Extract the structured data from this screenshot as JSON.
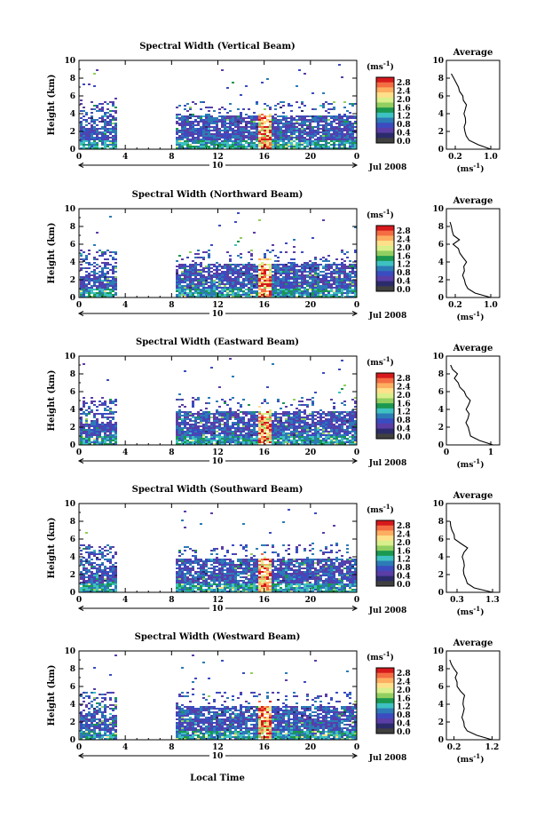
{
  "figure": {
    "x_axis_label": "Local Time",
    "y_axis_label": "Height (km)",
    "date_label": "Jul 2008",
    "day_label": "10",
    "unit_label": "(ms",
    "unit_exponent": "-1",
    "average_title": "Average",
    "average_unit": "(ms",
    "average_unit_exponent": "-1",
    "colorbar_ticks": [
      "2.8",
      "2.4",
      "2.0",
      "1.6",
      "1.2",
      "0.8",
      "0.4",
      "0.0"
    ],
    "colorbar_colors": [
      "#d7191c",
      "#f46d43",
      "#fdae61",
      "#fee08b",
      "#d9ef8b",
      "#91cf60",
      "#1a9850",
      "#3ec1c1",
      "#2c7bb6",
      "#3b4cc0",
      "#5a3ea6",
      "#2b2b6b",
      "#404040"
    ]
  },
  "chart_data": [
    {
      "type": "heatmap",
      "title": "Spectral Width (Vertical Beam)",
      "xlabel": "Local Time",
      "ylabel": "Height (km)",
      "x_ticks": [
        "0",
        "4",
        "8",
        "12",
        "16",
        "20",
        "0"
      ],
      "y_ticks": [
        "0",
        "2",
        "4",
        "6",
        "8",
        "10"
      ],
      "xlim": [
        0,
        24
      ],
      "ylim": [
        0,
        10
      ],
      "clim": [
        0,
        3.0
      ],
      "gap_hours": [
        3.2,
        8.2
      ],
      "average": {
        "title": "Average",
        "x_ticks": [
          "0.2",
          "1.0"
        ],
        "xlim": [
          0,
          1.2
        ],
        "heights": [
          0,
          0.5,
          1,
          1.5,
          2,
          2.5,
          3,
          3.5,
          4,
          4.5,
          5,
          5.5,
          6,
          6.5,
          7,
          7.5,
          8,
          8.5
        ],
        "values": [
          1.0,
          0.7,
          0.5,
          0.45,
          0.42,
          0.4,
          0.42,
          0.44,
          0.38,
          0.43,
          0.46,
          0.4,
          0.35,
          0.3,
          0.26,
          0.2,
          0.15,
          0.1
        ]
      }
    },
    {
      "type": "heatmap",
      "title": "Spectral Width (Northward Beam)",
      "xlabel": "Local Time",
      "ylabel": "Height (km)",
      "x_ticks": [
        "0",
        "4",
        "8",
        "12",
        "16",
        "20",
        "0"
      ],
      "y_ticks": [
        "0",
        "2",
        "4",
        "6",
        "8",
        "10"
      ],
      "xlim": [
        0,
        24
      ],
      "ylim": [
        0,
        10
      ],
      "clim": [
        0,
        3.0
      ],
      "gap_hours": [
        3.2,
        8.2
      ],
      "average": {
        "title": "Average",
        "x_ticks": [
          "0.2",
          "1.0"
        ],
        "xlim": [
          0,
          1.2
        ],
        "heights": [
          0,
          0.5,
          1,
          1.5,
          2,
          2.5,
          3,
          3.5,
          4,
          4.5,
          5,
          5.5,
          6,
          6.5,
          7,
          7.5,
          8,
          8.5
        ],
        "values": [
          1.0,
          0.65,
          0.48,
          0.45,
          0.42,
          0.38,
          0.42,
          0.4,
          0.45,
          0.36,
          0.3,
          0.26,
          0.15,
          0.28,
          0.18,
          0.14,
          0.1,
          0.1
        ]
      }
    },
    {
      "type": "heatmap",
      "title": "Spectral Width (Eastward Beam)",
      "xlabel": "Local Time",
      "ylabel": "Height (km)",
      "x_ticks": [
        "0",
        "4",
        "8",
        "12",
        "16",
        "20",
        "0"
      ],
      "y_ticks": [
        "0",
        "2",
        "4",
        "6",
        "8",
        "10"
      ],
      "xlim": [
        0,
        24
      ],
      "ylim": [
        0,
        10
      ],
      "clim": [
        0,
        3.0
      ],
      "gap_hours": [
        3.2,
        8.2
      ],
      "average": {
        "title": "Average",
        "x_ticks": [
          "0",
          "1"
        ],
        "xlim": [
          0,
          1.2
        ],
        "heights": [
          0,
          0.5,
          1,
          1.5,
          2,
          2.5,
          3,
          3.5,
          4,
          4.5,
          5,
          5.5,
          6,
          6.5,
          7,
          7.5,
          8,
          8.5,
          9
        ],
        "values": [
          1.05,
          0.75,
          0.55,
          0.5,
          0.48,
          0.45,
          0.47,
          0.5,
          0.45,
          0.5,
          0.52,
          0.45,
          0.4,
          0.3,
          0.28,
          0.2,
          0.25,
          0.15,
          0.1
        ]
      }
    },
    {
      "type": "heatmap",
      "title": "Spectral Width (Southward Beam)",
      "xlabel": "Local Time",
      "ylabel": "Height (km)",
      "x_ticks": [
        "0",
        "4",
        "8",
        "12",
        "16",
        "20",
        "0"
      ],
      "y_ticks": [
        "0",
        "2",
        "4",
        "6",
        "8",
        "10"
      ],
      "xlim": [
        0,
        24
      ],
      "ylim": [
        0,
        10
      ],
      "clim": [
        0,
        3.0
      ],
      "gap_hours": [
        3.2,
        8.2
      ],
      "average": {
        "title": "Average",
        "x_ticks": [
          "0.3",
          "1.3"
        ],
        "xlim": [
          0,
          1.5
        ],
        "heights": [
          0,
          0.5,
          1,
          1.5,
          2,
          2.5,
          3,
          3.5,
          4,
          4.5,
          5,
          5.5,
          6,
          6.5,
          7,
          7.5,
          8
        ],
        "values": [
          1.3,
          0.8,
          0.6,
          0.55,
          0.5,
          0.47,
          0.5,
          0.48,
          0.45,
          0.5,
          0.58,
          0.42,
          0.25,
          0.2,
          0.15,
          0.12,
          0.1
        ]
      }
    },
    {
      "type": "heatmap",
      "title": "Spectral Width (Westward Beam)",
      "xlabel": "Local Time",
      "ylabel": "Height (km)",
      "x_ticks": [
        "0",
        "4",
        "8",
        "12",
        "16",
        "20",
        "0"
      ],
      "y_ticks": [
        "0",
        "2",
        "4",
        "6",
        "8",
        "10"
      ],
      "xlim": [
        0,
        24
      ],
      "ylim": [
        0,
        10
      ],
      "clim": [
        0,
        3.0
      ],
      "gap_hours": [
        3.2,
        8.2
      ],
      "average": {
        "title": "Average",
        "x_ticks": [
          "0.2",
          "1.2"
        ],
        "xlim": [
          0,
          1.4
        ],
        "heights": [
          0,
          0.5,
          1,
          1.5,
          2,
          2.5,
          3,
          3.5,
          4,
          4.5,
          5,
          5.5,
          6,
          6.5,
          7,
          7.5,
          8,
          8.5,
          9
        ],
        "values": [
          1.2,
          0.8,
          0.55,
          0.48,
          0.45,
          0.42,
          0.44,
          0.46,
          0.42,
          0.45,
          0.48,
          0.38,
          0.3,
          0.28,
          0.22,
          0.3,
          0.18,
          0.12,
          0.1
        ]
      }
    }
  ]
}
